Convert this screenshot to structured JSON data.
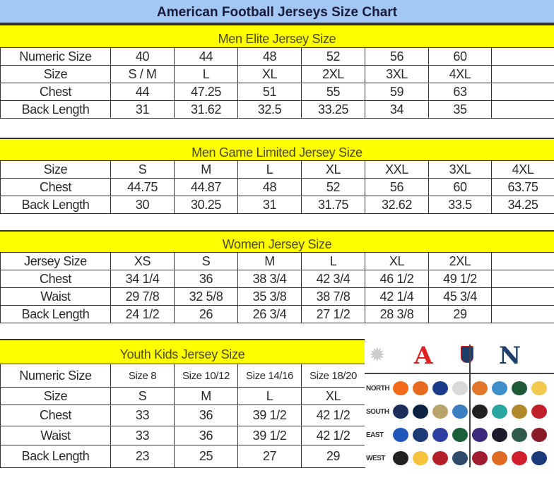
{
  "title": "American Football Jerseys Size Chart",
  "sections": [
    {
      "heading": "Men Elite Jersey Size",
      "rows": [
        [
          "Numeric Size",
          "40",
          "44",
          "48",
          "52",
          "56",
          "60",
          ""
        ],
        [
          "Size",
          "S / M",
          "L",
          "XL",
          "2XL",
          "3XL",
          "4XL",
          ""
        ],
        [
          "Chest",
          "44",
          "47.25",
          "51",
          "55",
          "59",
          "63",
          ""
        ],
        [
          "Back Length",
          "31",
          "31.62",
          "32.5",
          "33.25",
          "34",
          "35",
          ""
        ]
      ]
    },
    {
      "heading": "Men Game Limited Jersey Size",
      "rows": [
        [
          "Size",
          "S",
          "M",
          "L",
          "XL",
          "XXL",
          "3XL",
          "4XL"
        ],
        [
          "Chest",
          "44.75",
          "44.87",
          "48",
          "52",
          "56",
          "60",
          "63.75"
        ],
        [
          "Back Length",
          "30",
          "30.25",
          "31",
          "31.75",
          "32.62",
          "33.5",
          "34.25"
        ]
      ]
    },
    {
      "heading": "Women Jersey Size",
      "rows": [
        [
          "Jersey Size",
          "XS",
          "S",
          "M",
          "L",
          "XL",
          "2XL",
          ""
        ],
        [
          "Chest",
          "34 1/4",
          "36",
          "38 3/4",
          "42 3/4",
          "46 1/2",
          "49 1/2",
          ""
        ],
        [
          "Waist",
          "29 7/8",
          "32 5/8",
          "35 3/8",
          "38 7/8",
          "42 1/4",
          "45 3/4",
          ""
        ],
        [
          "Back Length",
          "24 1/2",
          "26",
          "26 3/4",
          "27 1/2",
          "28 3/8",
          "29",
          ""
        ]
      ]
    },
    {
      "heading": "Youth Kids Jersey Size",
      "rows": [
        [
          "Numeric Size",
          "Size 8",
          "Size 10/12",
          "Size 14/16",
          "Size 18/20"
        ],
        [
          "Size",
          "S",
          "M",
          "L",
          "XL"
        ],
        [
          "Chest",
          "33",
          "36",
          "39 1/2",
          "42 1/2"
        ],
        [
          "Waist",
          "33",
          "36",
          "39 1/2",
          "42 1/2"
        ],
        [
          "Back Length",
          "23",
          "25",
          "27",
          "29"
        ]
      ]
    }
  ],
  "league_graphic": {
    "divisions": [
      "NORTH",
      "SOUTH",
      "EAST",
      "WEST"
    ],
    "afc_logo": "afc-logo-icon",
    "nfc_logo": "nfc-logo-icon",
    "nfl_logo": "nfl-shield-icon",
    "afc_colors": [
      [
        "#f26a1a",
        "#e76b1f",
        "#1a3b8a",
        "#d9d9d9"
      ],
      [
        "#1b2f5c",
        "#0b2340",
        "#b8a46a",
        "#3c7fc0"
      ],
      [
        "#1f56b8",
        "#1d3a78",
        "#2c3fa0",
        "#1b5f3a"
      ],
      [
        "#222222",
        "#f5c23e",
        "#b3202a",
        "#2f4a6a"
      ]
    ],
    "nfc_colors": [
      [
        "#e0772b",
        "#3f8fcb",
        "#1e5a35",
        "#f2c94c"
      ],
      [
        "#222222",
        "#2aa6a0",
        "#b08a2a",
        "#c0202a"
      ],
      [
        "#3b2a7a",
        "#1a1a2a",
        "#2f5a4a",
        "#8a1c2a"
      ],
      [
        "#a01c30",
        "#e06a24",
        "#d02030",
        "#1a3a7a"
      ]
    ]
  }
}
